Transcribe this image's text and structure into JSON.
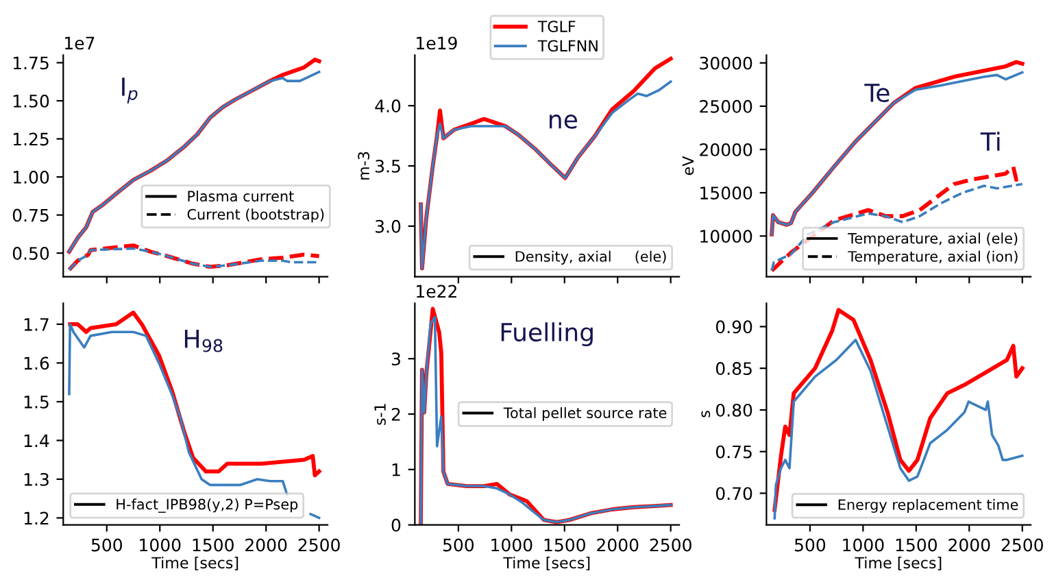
{
  "chart_data": [
    {
      "type": "line",
      "xlim": [
        90,
        2580
      ],
      "xticks": [
        {
          "value": 500,
          "label": null
        },
        {
          "value": 1000,
          "label": null
        },
        {
          "value": 1500,
          "label": null
        },
        {
          "value": 2000,
          "label": null
        },
        {
          "value": 2500,
          "label": null
        }
      ],
      "ylim": [
        0.345,
        1.8
      ],
      "yticks": [
        {
          "value": 0.5,
          "label": "0.50"
        },
        {
          "value": 0.75,
          "label": "0.75"
        },
        {
          "value": 1.0,
          "label": "1.00"
        },
        {
          "value": 1.25,
          "label": "1.25"
        },
        {
          "value": 1.5,
          "label": "1.50"
        },
        {
          "value": 1.75,
          "label": "1.75"
        }
      ],
      "tick_labels": "y",
      "grid": false,
      "series": [
        {
          "color": "#ff0000",
          "line_style": "solid",
          "x": [
            146,
            226,
            307,
            367,
            468,
            589,
            750,
            910,
            1071,
            1232,
            1353,
            1474,
            1595,
            1715,
            1876,
            2037,
            2158,
            2359,
            2460,
            2500
          ],
          "values": [
            0.51,
            0.6,
            0.67,
            0.77,
            0.82,
            0.89,
            0.98,
            1.04,
            1.11,
            1.2,
            1.28,
            1.39,
            1.46,
            1.51,
            1.57,
            1.63,
            1.67,
            1.72,
            1.77,
            1.76
          ]
        },
        {
          "color": "#3a7ebf",
          "line_style": "solid",
          "x": [
            146,
            226,
            307,
            367,
            468,
            589,
            750,
            910,
            1071,
            1232,
            1353,
            1474,
            1595,
            1715,
            1876,
            2037,
            2158,
            2198,
            2319,
            2500
          ],
          "values": [
            0.51,
            0.6,
            0.67,
            0.77,
            0.82,
            0.89,
            0.98,
            1.04,
            1.11,
            1.2,
            1.28,
            1.39,
            1.46,
            1.51,
            1.57,
            1.63,
            1.65,
            1.63,
            1.63,
            1.69
          ]
        },
        {
          "color": "#ff0000",
          "line_style": "dashed",
          "x": [
            146,
            226,
            327,
            347,
            750,
            910,
            1071,
            1313,
            1474,
            1635,
            1957,
            2158,
            2359,
            2500
          ],
          "values": [
            0.39,
            0.45,
            0.49,
            0.52,
            0.55,
            0.51,
            0.48,
            0.43,
            0.41,
            0.42,
            0.46,
            0.47,
            0.49,
            0.48
          ]
        },
        {
          "color": "#3a7ebf",
          "line_style": "dashed",
          "x": [
            146,
            226,
            327,
            347,
            750,
            910,
            1071,
            1313,
            1474,
            1635,
            1957,
            2158,
            2238,
            2500
          ],
          "values": [
            0.39,
            0.45,
            0.49,
            0.52,
            0.53,
            0.51,
            0.48,
            0.43,
            0.41,
            0.42,
            0.45,
            0.45,
            0.44,
            0.44
          ]
        }
      ],
      "annotations": [
        "Plasma current",
        "Current (bootstrap)",
        "1e7",
        "I$_{p}$"
      ]
    },
    {
      "type": "line",
      "xlim": [
        90,
        2580
      ],
      "xticks": [
        {
          "value": 500,
          "label": null
        },
        {
          "value": 1000,
          "label": null
        },
        {
          "value": 1500,
          "label": null
        },
        {
          "value": 2000,
          "label": null
        },
        {
          "value": 2500,
          "label": null
        }
      ],
      "ylim": [
        2.58,
        4.42
      ],
      "yticks": [
        {
          "value": 3.0,
          "label": "3.0"
        },
        {
          "value": 3.5,
          "label": "3.5"
        },
        {
          "value": 4.0,
          "label": "4.0"
        }
      ],
      "tick_labels": "y",
      "grid": false,
      "ylabel": "m-3",
      "legend": "top",
      "series": [
        {
          "name": "TGLF",
          "color": "#ff0000",
          "line_style": "solid",
          "x": [
            146,
            158,
            198,
            259,
            299,
            327,
            359,
            460,
            621,
            741,
            943,
            1063,
            1224,
            1385,
            1506,
            1626,
            1787,
            1949,
            2150,
            2351,
            2500
          ],
          "values": [
            3.18,
            2.65,
            3.07,
            3.5,
            3.75,
            3.96,
            3.73,
            3.8,
            3.85,
            3.89,
            3.83,
            3.76,
            3.64,
            3.5,
            3.4,
            3.57,
            3.75,
            3.97,
            4.12,
            4.31,
            4.39
          ]
        },
        {
          "name": "TGLFNN",
          "color": "#3a7ebf",
          "line_style": "solid",
          "x": [
            146,
            158,
            198,
            259,
            299,
            327,
            359,
            460,
            621,
            741,
            943,
            1063,
            1224,
            1385,
            1506,
            1626,
            1787,
            1949,
            2110,
            2190,
            2271,
            2392,
            2500
          ],
          "values": [
            3.18,
            2.65,
            3.07,
            3.5,
            3.75,
            3.85,
            3.73,
            3.8,
            3.83,
            3.83,
            3.83,
            3.76,
            3.64,
            3.5,
            3.4,
            3.57,
            3.75,
            3.94,
            4.05,
            4.1,
            4.08,
            4.13,
            4.2
          ]
        }
      ],
      "annotations": [
        "Density, axial     (ele)",
        "1e19",
        "ne"
      ]
    },
    {
      "type": "line",
      "xlim": [
        90,
        2580
      ],
      "xticks": [
        {
          "value": 500,
          "label": null
        },
        {
          "value": 1000,
          "label": null
        },
        {
          "value": 1500,
          "label": null
        },
        {
          "value": 2000,
          "label": null
        },
        {
          "value": 2500,
          "label": null
        }
      ],
      "ylim": [
        5300,
        30900
      ],
      "yticks": [
        10000,
        15000,
        20000,
        25000,
        30000
      ],
      "tick_labels": "y",
      "grid": false,
      "ylabel": "eV",
      "series": [
        {
          "color": "#ff0000",
          "line_style": "solid",
          "x": [
            140,
            152,
            201,
            282,
            322,
            363,
            524,
            726,
            928,
            1130,
            1292,
            1494,
            1857,
            2140,
            2342,
            2443,
            2500
          ],
          "values": [
            10200,
            12400,
            11600,
            11300,
            11500,
            12800,
            15000,
            18000,
            20900,
            23400,
            25400,
            27100,
            28400,
            29100,
            29600,
            30100,
            29900
          ]
        },
        {
          "color": "#3a7ebf",
          "line_style": "solid",
          "x": [
            140,
            152,
            201,
            282,
            322,
            363,
            524,
            726,
            928,
            1130,
            1292,
            1494,
            1736,
            1938,
            2140,
            2261,
            2342,
            2500
          ],
          "values": [
            10200,
            12400,
            11600,
            11300,
            11500,
            12800,
            15000,
            18000,
            20900,
            23400,
            25400,
            26900,
            27400,
            27900,
            28400,
            28600,
            28100,
            28900
          ]
        },
        {
          "color": "#ff0000",
          "line_style": "dashed",
          "x": [
            140,
            322,
            726,
            1050,
            1211,
            1373,
            1534,
            1857,
            2019,
            2342,
            2415,
            2443,
            2500
          ],
          "values": [
            6000,
            8100,
            11800,
            13000,
            12300,
            12300,
            13000,
            16000,
            16500,
            17200,
            18000,
            16500,
            16800
          ]
        },
        {
          "color": "#3a7ebf",
          "line_style": "dashed",
          "x": [
            140,
            160,
            322,
            484,
            726,
            1050,
            1211,
            1373,
            1534,
            1736,
            1938,
            2140,
            2261,
            2500
          ],
          "values": [
            6000,
            7000,
            7900,
            10200,
            11600,
            12600,
            12300,
            11600,
            12300,
            13800,
            15000,
            15800,
            15500,
            16000
          ]
        }
      ],
      "annotations": [
        "Temperature, axial (ele)",
        "Temperature, axial (ion)",
        "Te",
        "Ti"
      ]
    },
    {
      "type": "line",
      "xlim": [
        90,
        2580
      ],
      "xticks": [
        500,
        1000,
        1500,
        2000,
        2500
      ],
      "ylim": [
        1.182,
        1.754
      ],
      "yticks": [
        1.2,
        1.3,
        1.4,
        1.5,
        1.6,
        1.7
      ],
      "grid": false,
      "xlabel": "Time [secs]",
      "series": [
        {
          "color": "#ff0000",
          "line_style": "solid",
          "x": [
            154,
            226,
            307,
            347,
            589,
            750,
            830,
            991,
            1112,
            1232,
            1313,
            1434,
            1554,
            1635,
            1957,
            2359,
            2440,
            2460,
            2500
          ],
          "values": [
            1.7,
            1.7,
            1.68,
            1.69,
            1.7,
            1.73,
            1.7,
            1.62,
            1.53,
            1.42,
            1.355,
            1.32,
            1.32,
            1.34,
            1.34,
            1.35,
            1.36,
            1.31,
            1.32
          ]
        },
        {
          "color": "#3a7ebf",
          "line_style": "solid",
          "x": [
            146,
            154,
            186,
            287,
            347,
            548,
            750,
            870,
            991,
            1112,
            1192,
            1273,
            1393,
            1474,
            1756,
            1917,
            2037,
            2158,
            2198,
            2279,
            2359,
            2420,
            2500
          ],
          "values": [
            1.52,
            1.7,
            1.68,
            1.64,
            1.67,
            1.68,
            1.68,
            1.67,
            1.6,
            1.52,
            1.46,
            1.37,
            1.3,
            1.285,
            1.285,
            1.3,
            1.295,
            1.295,
            1.26,
            null,
            null,
            1.21,
            1.2
          ]
        }
      ],
      "annotations": [
        "H-fact_IPB98(y,2) P=Psep",
        "H$_{98}$"
      ]
    },
    {
      "type": "line",
      "xlim": [
        90,
        2580
      ],
      "xticks": [
        500,
        1000,
        1500,
        2000,
        2500
      ],
      "ylim": [
        0,
        4.0
      ],
      "yticks": [
        0,
        1,
        2,
        3
      ],
      "grid": false,
      "xlabel": "Time [secs]",
      "ylabel": "s-1",
      "series": [
        {
          "color": "#ff0000",
          "line_style": "solid",
          "x": [
            146,
            158,
            178,
            198,
            259,
            319,
            339,
            359,
            399,
            580,
            741,
            862,
            983,
            1144,
            1305,
            1426,
            1546,
            1747,
            1949,
            2150,
            2351,
            2500
          ],
          "values": [
            0,
            2.8,
            2.03,
            2.72,
            3.9,
            3.48,
            3.1,
            0.96,
            0.74,
            0.7,
            0.7,
            0.74,
            0.55,
            0.43,
            0.09,
            0.05,
            0.09,
            0.21,
            0.28,
            0.32,
            0.34,
            0.36
          ]
        },
        {
          "color": "#3a7ebf",
          "line_style": "solid",
          "x": [
            146,
            158,
            178,
            198,
            238,
            279,
            299,
            339,
            359,
            399,
            580,
            741,
            862,
            983,
            1104,
            1224,
            1305,
            1426,
            1546,
            1747,
            1949,
            2150,
            2351,
            2500
          ],
          "values": [
            0,
            2.8,
            2.03,
            2.72,
            3.63,
            3.75,
            1.42,
            1.96,
            0.96,
            0.74,
            0.7,
            0.7,
            0.66,
            0.55,
            0.4,
            0.21,
            0.09,
            0.05,
            0.09,
            0.21,
            0.28,
            0.32,
            0.34,
            0.36
          ]
        }
      ],
      "annotations": [
        "Total pellet source rate",
        "1e22",
        "Fuelling"
      ]
    },
    {
      "type": "line",
      "xlim": [
        90,
        2580
      ],
      "xticks": [
        500,
        1000,
        1500,
        2000,
        2500
      ],
      "ylim": [
        0.662,
        0.928
      ],
      "yticks": [
        {
          "value": 0.7,
          "label": "0.70"
        },
        {
          "value": 0.75,
          "label": "0.75"
        },
        {
          "value": 0.8,
          "label": "0.80"
        },
        {
          "value": 0.85,
          "label": "0.85"
        },
        {
          "value": 0.9,
          "label": "0.90"
        }
      ],
      "grid": false,
      "xlabel": "Time [secs]",
      "ylabel": "s",
      "series": [
        {
          "color": "#ff0000",
          "line_style": "solid",
          "x": [
            167,
            227,
            267,
            307,
            347,
            548,
            709,
            769,
            910,
            1070,
            1231,
            1351,
            1432,
            1512,
            1632,
            1793,
            1954,
            2155,
            2355,
            2415,
            2444,
            2500
          ],
          "values": [
            0.68,
            0.745,
            0.78,
            0.77,
            0.82,
            0.85,
            0.895,
            0.92,
            0.908,
            0.86,
            0.797,
            0.74,
            0.727,
            0.74,
            0.79,
            0.82,
            0.83,
            0.845,
            0.86,
            0.877,
            0.84,
            0.85
          ]
        },
        {
          "color": "#3a7ebf",
          "line_style": "solid",
          "x": [
            167,
            179,
            227,
            267,
            307,
            347,
            548,
            749,
            930,
            1070,
            1231,
            1351,
            1432,
            1512,
            1632,
            1793,
            1954,
            1994,
            2155,
            2175,
            2215,
            2275,
            2315,
            2355,
            2500
          ],
          "values": [
            0.67,
            0.71,
            0.73,
            0.74,
            0.73,
            0.81,
            0.84,
            0.86,
            0.884,
            0.847,
            0.78,
            0.73,
            0.715,
            0.72,
            0.76,
            0.776,
            0.797,
            0.81,
            0.8,
            0.81,
            0.77,
            0.757,
            0.74,
            0.74,
            0.745
          ]
        }
      ],
      "annotations": [
        "Energy replacement time"
      ]
    }
  ]
}
